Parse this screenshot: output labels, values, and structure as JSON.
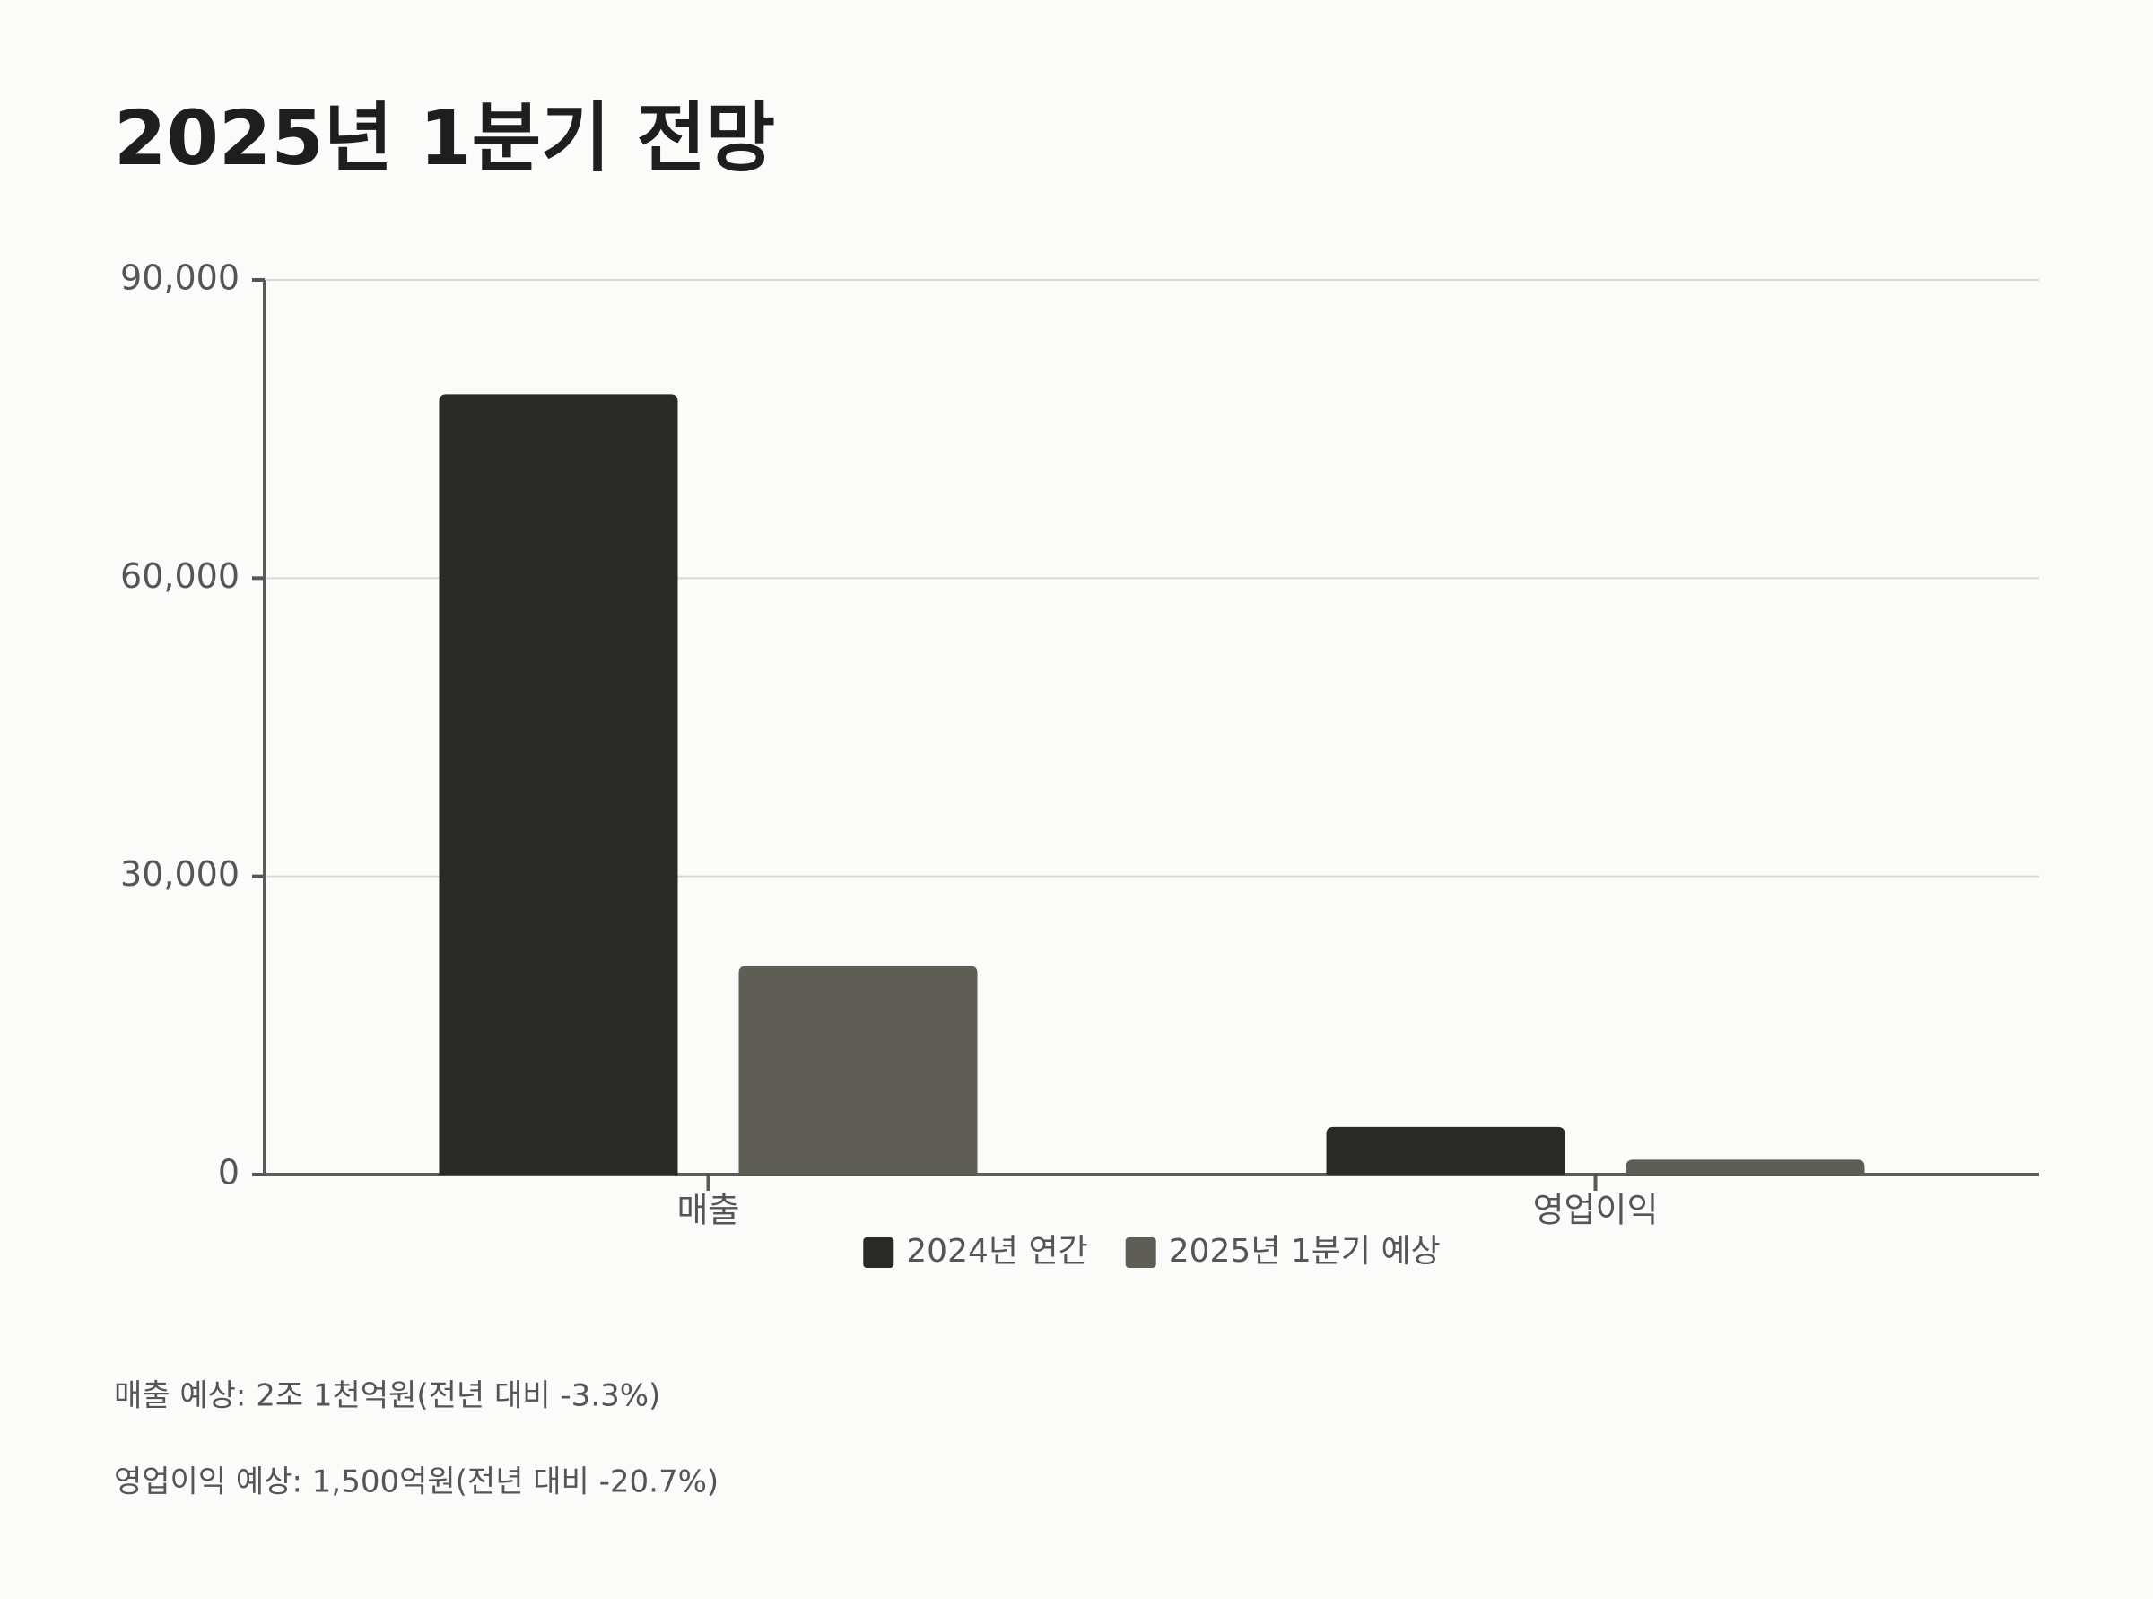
{
  "chart_data": {
    "type": "bar",
    "title": "2025년 1분기 전망",
    "categories": [
      "매출",
      "영업이익"
    ],
    "series": [
      {
        "name": "2024년 연간",
        "color": "#292a25",
        "values": [
          78500,
          4800
        ]
      },
      {
        "name": "2025년 1분기 예상",
        "color": "#5e5e56",
        "values": [
          21000,
          1500
        ]
      }
    ],
    "ylim": [
      0,
      90000
    ],
    "yticks": [
      0,
      {
        "value": 30000,
        "label": "30,000"
      },
      {
        "value": 60000,
        "label": "60,000"
      },
      {
        "value": 90000,
        "label": "90,000"
      }
    ],
    "grid": true,
    "legend": "bottom",
    "annotations": [
      "매출 예상: 2조 1천억원(전년 대비 -3.3%)",
      "영업이익 예상: 1,500억원(전년 대비 -20.7%)"
    ]
  }
}
